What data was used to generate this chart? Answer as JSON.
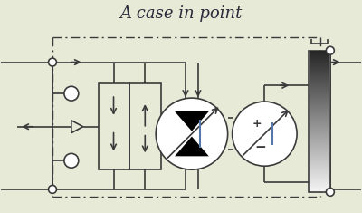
{
  "title": "A case in point",
  "bg_color": "#e8ead8",
  "line_color": "#3a3a3a",
  "figsize": [
    4.0,
    2.35
  ],
  "dpi": 100
}
